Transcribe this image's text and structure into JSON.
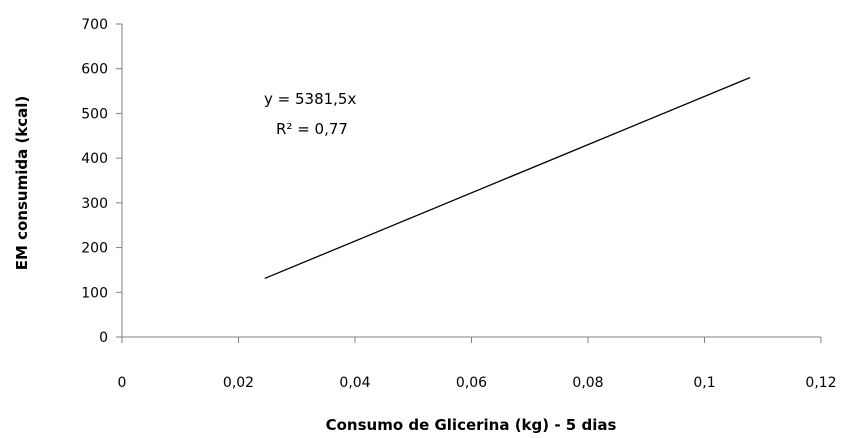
{
  "chart_data": {
    "type": "line",
    "title": "",
    "xlabel": "Consumo de Glicerina  (kg) - 5 dias",
    "ylabel": "EM consumida  (kcal)",
    "xlim": [
      0,
      0.12
    ],
    "ylim": [
      0,
      700
    ],
    "x_ticks": [
      0,
      0.02,
      0.04,
      0.06,
      0.08,
      0.1,
      0.12
    ],
    "x_tick_labels": [
      "0",
      "0,02",
      "0,04",
      "0,06",
      "0,08",
      "0,1",
      "0,12"
    ],
    "y_ticks": [
      0,
      100,
      200,
      300,
      400,
      500,
      600,
      700
    ],
    "y_tick_labels": [
      "0",
      "100",
      "200",
      "300",
      "400",
      "500",
      "600",
      "700"
    ],
    "grid": false,
    "series": [
      {
        "color": "#000000",
        "x": [
          0.0245,
          0.1078
        ],
        "y": [
          131,
          580
        ]
      }
    ],
    "annotations": {
      "equation": "y = 5381,5x",
      "r_squared": "R² = 0,77"
    }
  }
}
